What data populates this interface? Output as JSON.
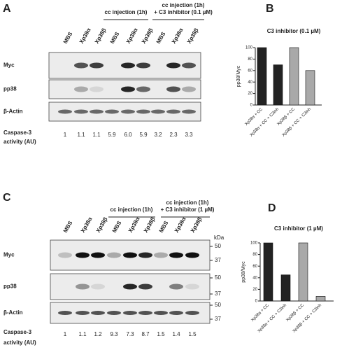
{
  "panels": [
    {
      "label": "A",
      "group_headers": [
        {
          "lines": [
            "cc injection (1h)"
          ]
        },
        {
          "lines": [
            "cc injection (1h)",
            "+ C3 inhibitor (0.1 µM)"
          ]
        }
      ],
      "lanes": [
        "MBS",
        "Xp38α",
        "Xp38β",
        "MBS",
        "Xp38α",
        "Xp38β",
        "MBS",
        "Xp38α",
        "Xp38β"
      ],
      "rows": [
        "Myc",
        "pp38",
        "β-Actin"
      ],
      "activity_label": [
        "Caspase-3",
        "activity (AU)"
      ],
      "activity_values": [
        "1",
        "1.1",
        "1.1",
        "5.9",
        "6.0",
        "5.9",
        "3.2",
        "2.3",
        "3.3"
      ]
    },
    {
      "label": "C",
      "group_headers": [
        {
          "lines": [
            "cc injection (1h)"
          ]
        },
        {
          "lines": [
            "cc injection (1h)",
            "+ C3 inhibitor (1 µM)"
          ]
        }
      ],
      "lanes": [
        "MBS",
        "Xp38α",
        "Xp38β",
        "MBS",
        "Xp38α",
        "Xp38β",
        "MBS",
        "Xp38α",
        "Xp38β"
      ],
      "rows": [
        "Myc",
        "pp38",
        "β-Actin"
      ],
      "kda_label": "kDa",
      "kda_markers": [
        [
          "50",
          "37"
        ],
        [
          "50",
          "37"
        ],
        [
          "50",
          "37"
        ]
      ],
      "activity_label": [
        "Caspase-3",
        "activity (AU)"
      ],
      "activity_values": [
        "1",
        "1.1",
        "1.2",
        "9.3",
        "7.3",
        "8.7",
        "1.5",
        "1.4",
        "1.5"
      ]
    }
  ],
  "chart_data": [
    {
      "type": "bar",
      "panel": "B",
      "title": "C3 inhibitor (0.1 µM)",
      "y_label": "pp38/Myc",
      "categories": [
        "Xp38α + CC",
        "Xp38α + CC + C3inh",
        "Xp38β + CC",
        "Xp38β + CC + C3inh"
      ],
      "values": [
        100,
        70,
        100,
        60
      ],
      "colors": [
        "#222222",
        "#222222",
        "#a9a9a9",
        "#a9a9a9"
      ],
      "ylim": [
        0,
        100
      ],
      "yticks": [
        0,
        20,
        40,
        60,
        80,
        100
      ]
    },
    {
      "type": "bar",
      "panel": "D",
      "title": "C3 inhibitor (1 µM)",
      "y_label": "pp38/Myc",
      "categories": [
        "Xp38α + CC",
        "Xp38α + CC + C3inh",
        "Xp38β + CC",
        "Xp38β + CC + C3inh"
      ],
      "values": [
        100,
        45,
        100,
        8
      ],
      "colors": [
        "#222222",
        "#222222",
        "#a9a9a9",
        "#a9a9a9"
      ],
      "ylim": [
        0,
        100
      ],
      "yticks": [
        0,
        20,
        40,
        60,
        80,
        100
      ]
    }
  ]
}
